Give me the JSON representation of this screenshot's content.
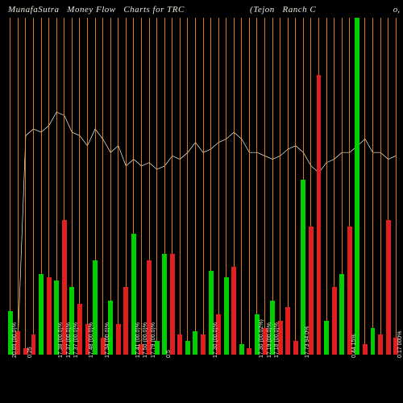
{
  "title": "MunafaSutra   Money Flow   Charts for TRC                         (Tejon   Ranch C",
  "right_label": "o,",
  "background_color": "#000000",
  "grid_color": "#ff8c1a",
  "line_color": "#f5f5f0",
  "text_color": "#e8e8e0",
  "green": "#00d000",
  "red": "#e02020",
  "title_fontsize": 11,
  "xlabel_fontsize": 7,
  "plot": {
    "y_max": 100,
    "line_max": 100,
    "line_series": [
      5,
      5,
      65,
      67,
      66,
      68,
      72,
      71,
      66,
      65,
      62,
      67,
      64,
      60,
      62,
      56,
      58,
      56,
      57,
      55,
      56,
      59,
      58,
      60,
      63,
      60,
      61,
      63,
      64,
      66,
      64,
      60,
      60,
      59,
      58,
      59,
      61,
      62,
      60,
      56,
      54,
      57,
      58,
      60,
      60,
      62,
      64,
      60,
      60,
      58,
      59
    ],
    "bars": [
      {
        "h": 13,
        "c": "green"
      },
      {
        "h": 7,
        "c": "red"
      },
      {
        "h": 2,
        "c": "red"
      },
      {
        "h": 6,
        "c": "red"
      },
      {
        "h": 24,
        "c": "green"
      },
      {
        "h": 23,
        "c": "red"
      },
      {
        "h": 22,
        "c": "green"
      },
      {
        "h": 40,
        "c": "red"
      },
      {
        "h": 20,
        "c": "green"
      },
      {
        "h": 15,
        "c": "red"
      },
      {
        "h": 9,
        "c": "red"
      },
      {
        "h": 28,
        "c": "green"
      },
      {
        "h": 5,
        "c": "red"
      },
      {
        "h": 16,
        "c": "green"
      },
      {
        "h": 9,
        "c": "red"
      },
      {
        "h": 20,
        "c": "red"
      },
      {
        "h": 36,
        "c": "green"
      },
      {
        "h": 3,
        "c": "red"
      },
      {
        "h": 28,
        "c": "red"
      },
      {
        "h": 4,
        "c": "green"
      },
      {
        "h": 30,
        "c": "green"
      },
      {
        "h": 30,
        "c": "red"
      },
      {
        "h": 6,
        "c": "red"
      },
      {
        "h": 4,
        "c": "green"
      },
      {
        "h": 7,
        "c": "green"
      },
      {
        "h": 6,
        "c": "red"
      },
      {
        "h": 25,
        "c": "green"
      },
      {
        "h": 12,
        "c": "red"
      },
      {
        "h": 23,
        "c": "green"
      },
      {
        "h": 26,
        "c": "red"
      },
      {
        "h": 3,
        "c": "green"
      },
      {
        "h": 2,
        "c": "red"
      },
      {
        "h": 12,
        "c": "green"
      },
      {
        "h": 8,
        "c": "red"
      },
      {
        "h": 16,
        "c": "green"
      },
      {
        "h": 10,
        "c": "red"
      },
      {
        "h": 14,
        "c": "red"
      },
      {
        "h": 4,
        "c": "red"
      },
      {
        "h": 52,
        "c": "green"
      },
      {
        "h": 38,
        "c": "red"
      },
      {
        "h": 83,
        "c": "red"
      },
      {
        "h": 10,
        "c": "green"
      },
      {
        "h": 20,
        "c": "red"
      },
      {
        "h": 24,
        "c": "green"
      },
      {
        "h": 38,
        "c": "red"
      },
      {
        "h": 100,
        "c": "green"
      },
      {
        "h": 3,
        "c": "red"
      },
      {
        "h": 8,
        "c": "green"
      },
      {
        "h": 6,
        "c": "red"
      },
      {
        "h": 40,
        "c": "red"
      },
      {
        "h": 5,
        "c": "red"
      }
    ],
    "x_labels": [
      "20.89 (00.0)%",
      "",
      "0.25",
      "",
      "",
      "",
      "17.38 (00.0)%",
      "17.37 (00.0)%",
      "17.37 (00.0)%",
      "",
      "17.48 (00.0)%",
      "",
      "17.34 (00.0)%",
      "",
      "",
      "",
      "17.41 (00.0)%",
      "17.50 (00.0)%",
      "17.79 (00.0)%",
      "",
      "0.5",
      "",
      "",
      "",
      "",
      "",
      "17.30 (00.0)%",
      "",
      "",
      "",
      "",
      "",
      "17.30 (00.02%)",
      "17.19 (00.0)%",
      "17.18 (00.0)%",
      "",
      "",
      "",
      "17.73 94.0%",
      "",
      "",
      "",
      "",
      "",
      "0.44 15%",
      "",
      "",
      "",
      "",
      "",
      "0.17 000%"
    ]
  }
}
